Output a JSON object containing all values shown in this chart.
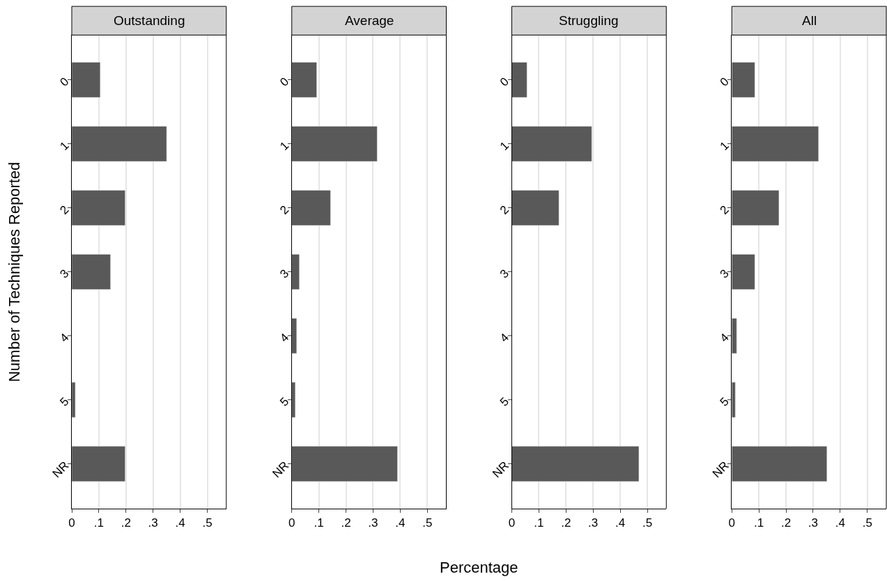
{
  "chart_data": [
    {
      "type": "bar",
      "orientation": "horizontal",
      "title": "Outstanding",
      "ylabel": "Number of Techniques Reported",
      "categories": [
        "0",
        "1",
        "2",
        "3",
        "4",
        "5",
        "NR"
      ],
      "values": [
        0.105,
        0.35,
        0.197,
        0.143,
        null,
        0.013,
        0.197
      ],
      "color": "#595959",
      "xlim": [
        0,
        0.57
      ],
      "xticks": [
        0,
        {
          "value": 0.1,
          "label": ".1"
        },
        {
          "value": 0.2,
          "label": ".2"
        },
        {
          "value": 0.3,
          "label": ".3"
        },
        {
          "value": 0.4,
          "label": ".4"
        },
        {
          "value": 0.5,
          "label": ".5"
        }
      ],
      "grid": "x"
    },
    {
      "type": "bar",
      "orientation": "horizontal",
      "title": "Average",
      "xlabel": "Percentage",
      "categories": [
        "0",
        "1",
        "2",
        "3",
        "4",
        "5",
        "NR"
      ],
      "values": [
        0.092,
        0.315,
        0.143,
        0.028,
        0.018,
        0.013,
        0.39
      ],
      "color": "#595959",
      "xlim": [
        0,
        0.57
      ],
      "xticks": [
        0,
        {
          "value": 0.1,
          "label": ".1"
        },
        {
          "value": 0.2,
          "label": ".2"
        },
        {
          "value": 0.3,
          "label": ".3"
        },
        {
          "value": 0.4,
          "label": ".4"
        },
        {
          "value": 0.5,
          "label": ".5"
        }
      ],
      "grid": "x"
    },
    {
      "type": "bar",
      "orientation": "horizontal",
      "title": "Struggling",
      "categories": [
        "0",
        "1",
        "2",
        "3",
        "4",
        "5",
        "NR"
      ],
      "values": [
        0.056,
        0.295,
        0.174,
        null,
        null,
        null,
        0.469
      ],
      "color": "#595959",
      "xlim": [
        0,
        0.57
      ],
      "xticks": [
        0,
        {
          "value": 0.1,
          "label": ".1"
        },
        {
          "value": 0.2,
          "label": ".2"
        },
        {
          "value": 0.3,
          "label": ".3"
        },
        {
          "value": 0.4,
          "label": ".4"
        },
        {
          "value": 0.5,
          "label": ".5"
        }
      ],
      "grid": "x"
    },
    {
      "type": "bar",
      "orientation": "horizontal",
      "title": "All",
      "categories": [
        "0",
        "1",
        "2",
        "3",
        "4",
        "5",
        "NR"
      ],
      "values": [
        0.085,
        0.32,
        0.174,
        0.085,
        0.018,
        0.013,
        0.351
      ],
      "color": "#595959",
      "xlim": [
        0,
        0.57
      ],
      "xticks": [
        0,
        {
          "value": 0.1,
          "label": ".1"
        },
        {
          "value": 0.2,
          "label": ".2"
        },
        {
          "value": 0.3,
          "label": ".3"
        },
        {
          "value": 0.4,
          "label": ".4"
        },
        {
          "value": 0.5,
          "label": ".5"
        }
      ],
      "grid": "x"
    }
  ]
}
